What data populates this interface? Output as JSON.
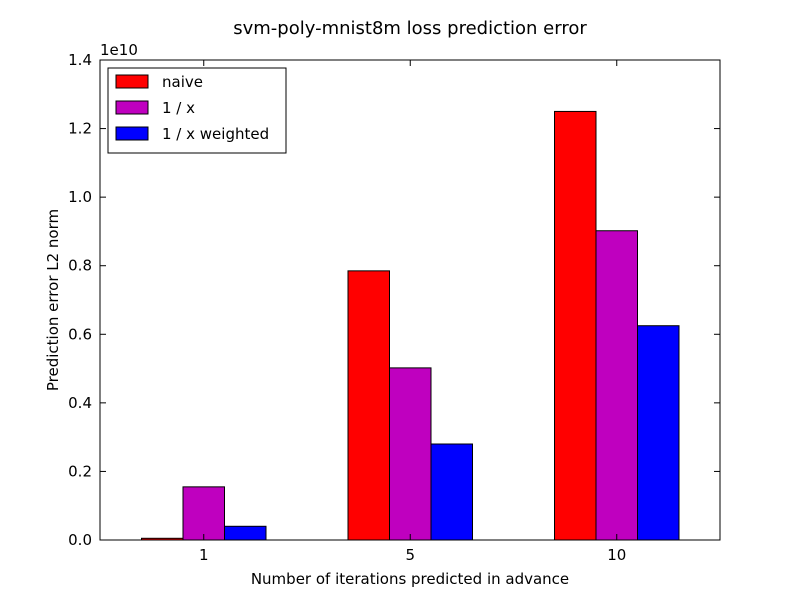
{
  "chart_data": {
    "type": "bar",
    "title": "svm-poly-mnist8m loss prediction error",
    "xlabel": "Number of iterations predicted in advance",
    "ylabel": "Prediction error L2 norm",
    "y_multiplier": "1e10",
    "categories": [
      "1",
      "5",
      "10"
    ],
    "ylim": [
      0,
      1.4
    ],
    "yticks": [
      "0.0",
      "0.2",
      "0.4",
      "0.6",
      "0.8",
      "1.0",
      "1.2",
      "1.4"
    ],
    "legend_position": "top-left",
    "grid": false,
    "series": [
      {
        "name": "naive",
        "color": "#ff0000",
        "values": [
          0.005,
          0.785,
          1.25
        ]
      },
      {
        "name": "1 / x",
        "color": "#bf00bf",
        "values": [
          0.155,
          0.502,
          0.902
        ]
      },
      {
        "name": "1 / x weighted",
        "color": "#0000ff",
        "values": [
          0.04,
          0.28,
          0.625
        ]
      }
    ]
  }
}
